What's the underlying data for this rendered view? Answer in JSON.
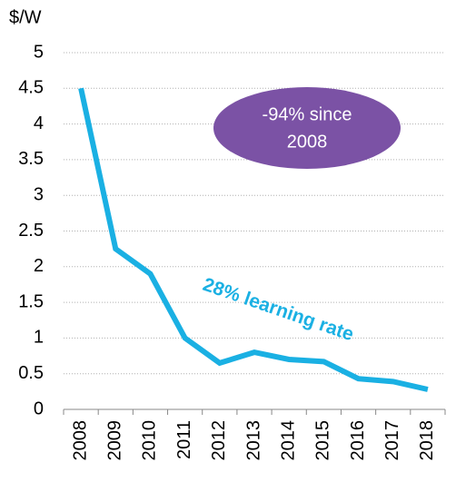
{
  "chart_data": {
    "type": "line",
    "ylabel": "$/W",
    "categories": [
      "2008",
      "2009",
      "2010",
      "2011",
      "2012",
      "2013",
      "2014",
      "2015",
      "2016",
      "2017",
      "2018"
    ],
    "values": [
      4.5,
      2.25,
      1.9,
      1.0,
      0.65,
      0.8,
      0.7,
      0.67,
      0.43,
      0.39,
      0.28
    ],
    "color": "#1ab0e3",
    "ylim": [
      0,
      5
    ],
    "yticks": [
      0,
      0.5,
      1,
      1.5,
      2,
      2.5,
      3,
      3.5,
      4,
      4.5,
      5
    ],
    "grid": true,
    "annotations": [
      {
        "lines": [
          "-94% since",
          "2008"
        ],
        "color": "#7b52a5"
      },
      {
        "lines": [
          "28% learning rate"
        ],
        "color": "#1ab0e3"
      }
    ]
  }
}
